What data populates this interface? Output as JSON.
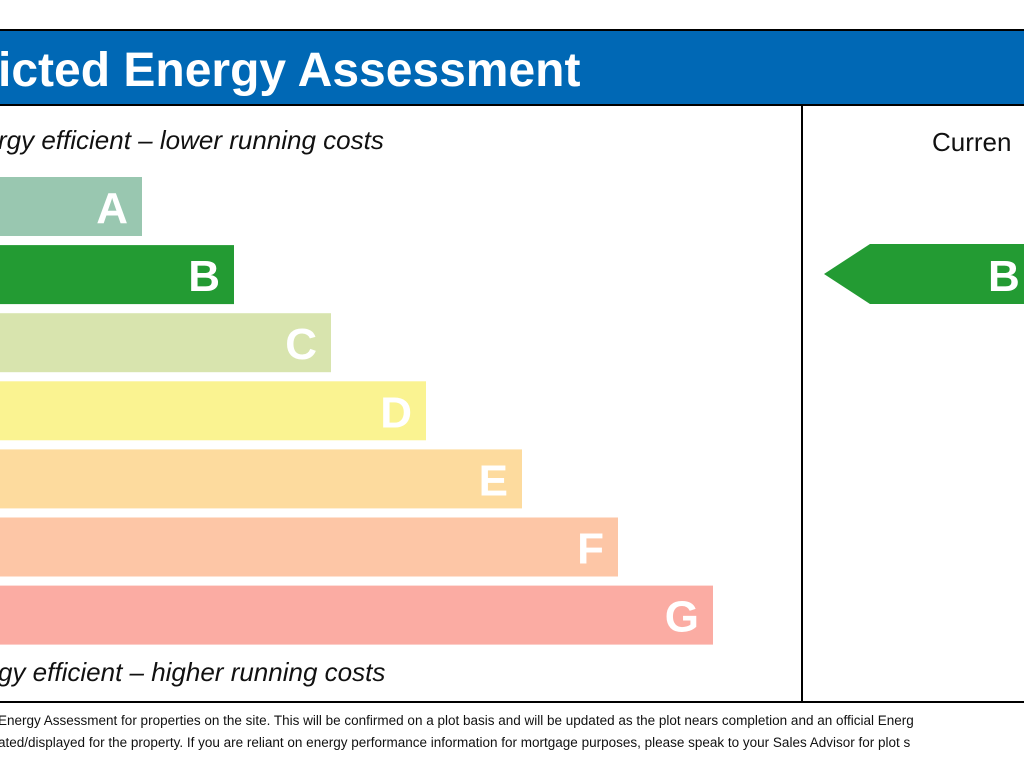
{
  "header": {
    "title": "icted Energy Assessment"
  },
  "scale": {
    "top_label": "rgy efficient – lower running costs",
    "bottom_label": "gy efficient – higher running costs",
    "bands": [
      {
        "letter": "A",
        "color": "#99c7b0"
      },
      {
        "letter": "B",
        "color": "#239b33"
      },
      {
        "letter": "C",
        "color": "#d8e4ae"
      },
      {
        "letter": "D",
        "color": "#faf391"
      },
      {
        "letter": "E",
        "color": "#fddb9e"
      },
      {
        "letter": "F",
        "color": "#fdc6a6"
      },
      {
        "letter": "G",
        "color": "#fbaca3"
      }
    ]
  },
  "current": {
    "label": "Curren",
    "rating": "B",
    "color": "#239b33"
  },
  "footer": {
    "lines": [
      "Energy Assessment for properties on the site. This will be confirmed on a plot basis and will be updated as the plot nears completion and an official Energ",
      "ated/displayed for the property. If you are reliant on energy performance information for mortgage purposes, please speak to your Sales Advisor for plot s"
    ]
  }
}
